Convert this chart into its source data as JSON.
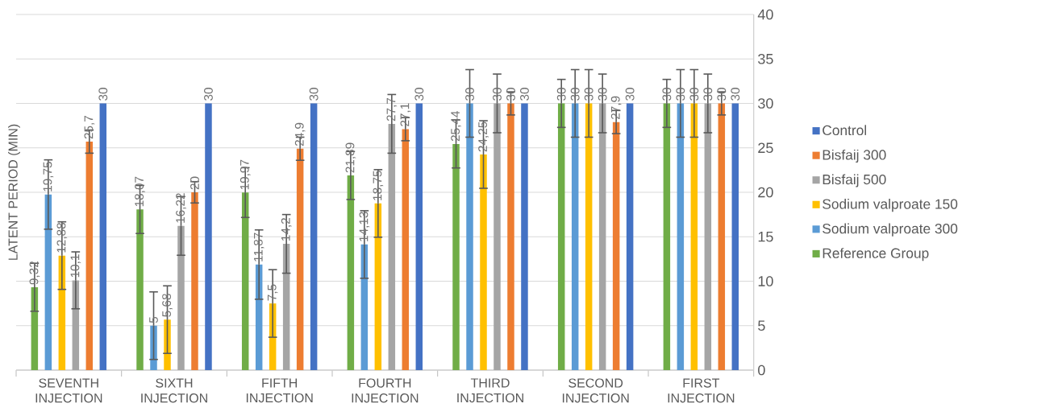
{
  "chart_data": {
    "type": "bar",
    "ylabel": "LATENT PERIOD (MIN)",
    "categories": [
      "SEVENTH INJECTION",
      "SIXTH INJECTION",
      "FIFTH INJECTION",
      "FOURTH INJECTION",
      "THIRD INJECTION",
      "SECOND INJECTION",
      "FIRST INJECTION"
    ],
    "ylim": [
      0,
      40
    ],
    "yticks": [
      0,
      5,
      10,
      15,
      20,
      25,
      30,
      35,
      40
    ],
    "grid": "y",
    "legend": "right",
    "series": [
      {
        "name": "Reference Group",
        "color": "#70ad47",
        "values": [
          9.32,
          18.07,
          19.97,
          21.89,
          25.44,
          30,
          30
        ],
        "errors": [
          2.7,
          2.7,
          2.8,
          2.7,
          2.7,
          2.7,
          2.7
        ],
        "value_labels": [
          "9,32",
          "18,07",
          "19,97",
          "21,89",
          "25,44",
          "30",
          "30"
        ]
      },
      {
        "name": "Sodium valproate 300",
        "color": "#5b9bd5",
        "values": [
          19.75,
          5,
          11.87,
          14.13,
          30,
          30,
          30
        ],
        "errors": [
          3.9,
          3.8,
          3.9,
          3.8,
          3.8,
          3.8,
          3.8
        ],
        "value_labels": [
          "19,75",
          "5",
          "11,87",
          "14,13",
          "30",
          "30",
          "30"
        ]
      },
      {
        "name": "Sodium valproate 150",
        "color": "#ffc000",
        "values": [
          12.88,
          5.68,
          7.5,
          18.75,
          24.25,
          30,
          30
        ],
        "errors": [
          3.8,
          3.8,
          3.8,
          3.8,
          3.8,
          3.8,
          3.8
        ],
        "value_labels": [
          "12,88",
          "5,68",
          "7,5",
          "18,75",
          "24,25",
          "30",
          "30"
        ]
      },
      {
        "name": "Bisfaij 500",
        "color": "#a5a5a5",
        "values": [
          10.1,
          16.22,
          14.2,
          27.7,
          30,
          30,
          30
        ],
        "errors": [
          3.2,
          3.3,
          3.3,
          3.3,
          3.3,
          3.3,
          3.3
        ],
        "value_labels": [
          "10,1",
          "16,22",
          "14,2",
          "27,7",
          "30",
          "30",
          "30"
        ]
      },
      {
        "name": "Bisfaij 300",
        "color": "#ed7d31",
        "values": [
          25.7,
          20,
          24.9,
          27.1,
          30,
          27.9,
          30
        ],
        "errors": [
          1.3,
          1.2,
          1.3,
          1.3,
          1.3,
          1.3,
          1.3
        ],
        "value_labels": [
          "25,7",
          "20",
          "24,9",
          "27,1",
          "30",
          "27,9",
          "30"
        ]
      },
      {
        "name": "Control",
        "color": "#4472c4",
        "values": [
          30,
          30,
          30,
          30,
          30,
          30,
          30
        ],
        "errors": [
          null,
          null,
          null,
          null,
          null,
          null,
          null
        ],
        "value_labels": [
          "30",
          "30",
          "30",
          "30",
          "30",
          "30",
          "30"
        ]
      }
    ]
  }
}
